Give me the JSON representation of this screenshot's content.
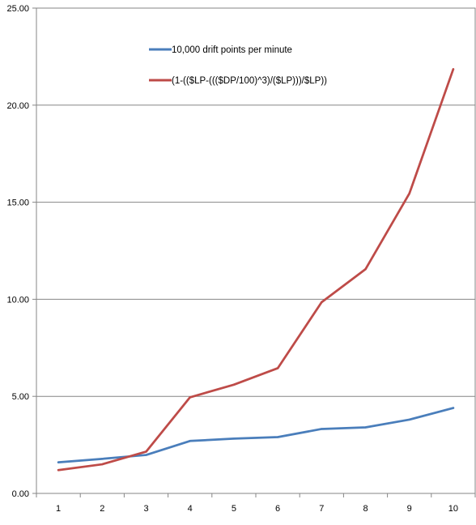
{
  "chart_data": {
    "type": "line",
    "title": "",
    "xlabel": "",
    "ylabel": "",
    "x": [
      1,
      2,
      3,
      4,
      5,
      6,
      7,
      8,
      9,
      10
    ],
    "x_tick_labels": [
      "1",
      "2",
      "3",
      "4",
      "5",
      "6",
      "7",
      "8",
      "9",
      "10"
    ],
    "ylim": [
      0,
      25
    ],
    "y_ticks": [
      0,
      5,
      10,
      15,
      20,
      25
    ],
    "y_tick_labels": [
      "0.00",
      "5.00",
      "10.00",
      "15.00",
      "20.00",
      "25.00"
    ],
    "grid": "horizontal",
    "legend_position": "top-center",
    "series": [
      {
        "name": "10,000 drift points per minute",
        "color": "#4a7ebb",
        "values": [
          1.6,
          1.78,
          1.98,
          2.7,
          2.82,
          2.9,
          3.32,
          3.4,
          3.8,
          4.4
        ]
      },
      {
        "name": "(1-(($LP-((($DP/100)^3)/($LP)))/$LP))",
        "color": "#be4b48",
        "values": [
          1.2,
          1.5,
          2.15,
          4.95,
          5.6,
          6.45,
          9.85,
          11.55,
          15.45,
          21.85
        ]
      }
    ]
  }
}
